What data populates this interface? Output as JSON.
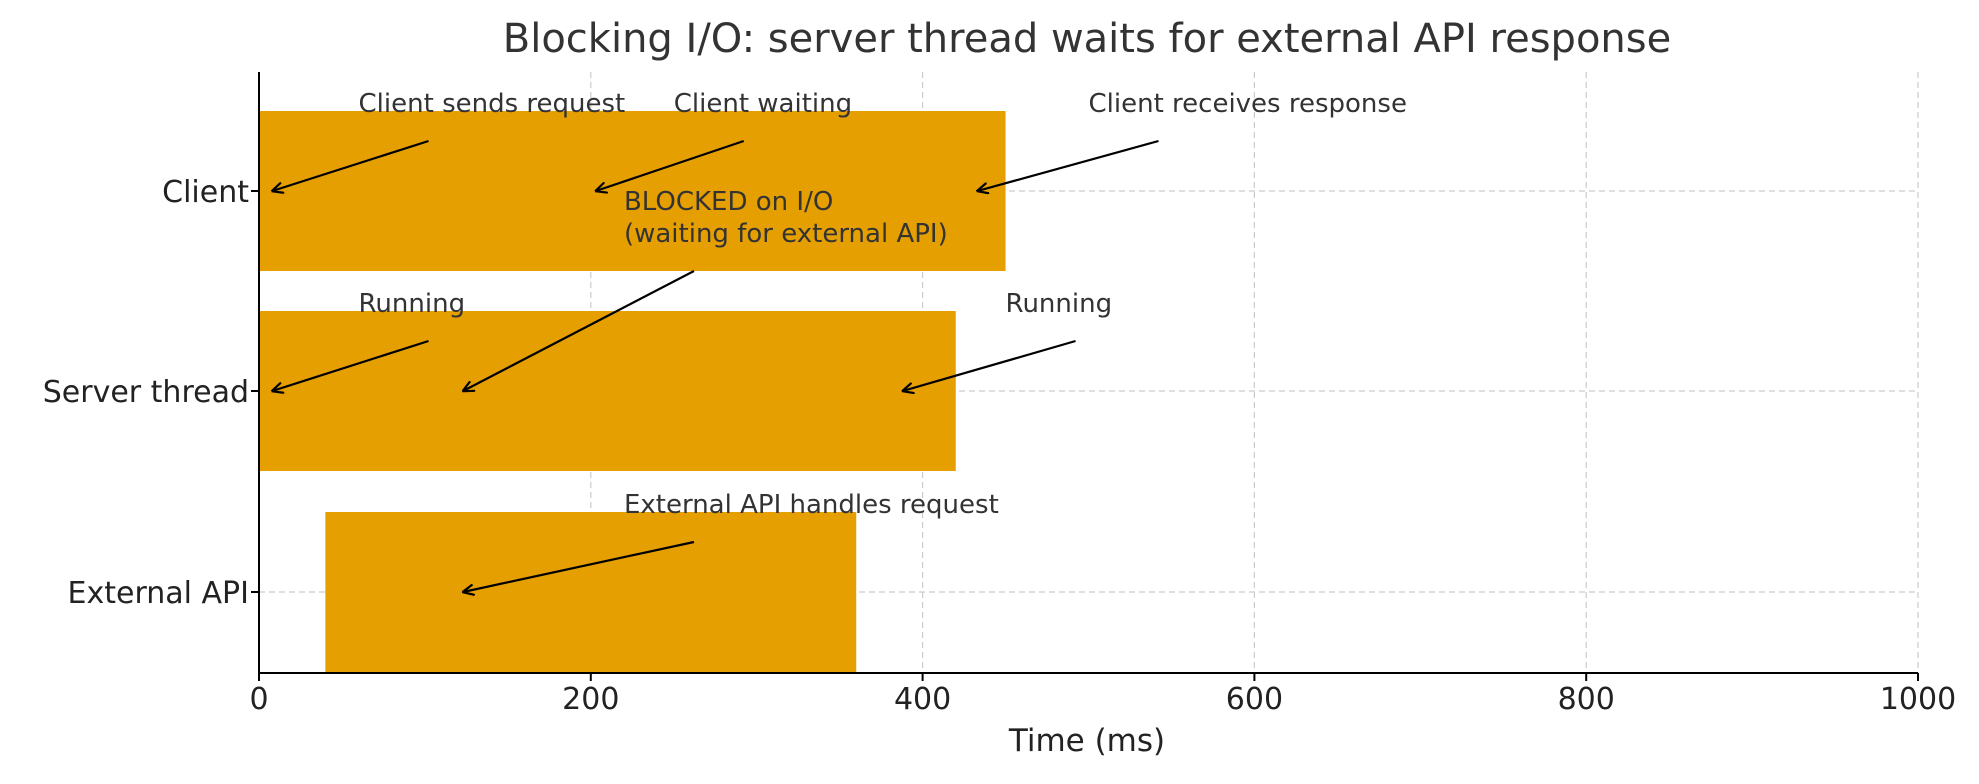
{
  "chart_data": {
    "type": "bar",
    "orientation": "horizontal",
    "title": "Blocking I/O: server thread waits for external API response",
    "xlabel": "Time (ms)",
    "ylabel": "",
    "xlim": [
      0,
      1000
    ],
    "xticks": [
      0,
      200,
      400,
      600,
      800,
      1000
    ],
    "categories": [
      "Client",
      "Server thread",
      "External API"
    ],
    "bars": [
      {
        "category": "Client",
        "start": 0,
        "end": 450
      },
      {
        "category": "Server thread",
        "start": 0,
        "end": 420
      },
      {
        "category": "External API",
        "start": 40,
        "end": 360
      }
    ],
    "grid": true,
    "bar_color": "#E69F00",
    "annotations": [
      {
        "lines": [
          "Client sends request"
        ],
        "category": "Client",
        "text_x": 60,
        "text_y": 0.35,
        "target_x": 8
      },
      {
        "lines": [
          "Client waiting"
        ],
        "category": "Client",
        "text_x": 250,
        "text_y": 0.35,
        "target_x": 203
      },
      {
        "lines": [
          "Client receives response"
        ],
        "category": "Client",
        "text_x": 500,
        "text_y": 0.35,
        "target_x": 433
      },
      {
        "lines": [
          "BLOCKED on I/O",
          "(waiting for external API)"
        ],
        "category": "Server thread",
        "text_x": 220,
        "text_y": 0.7,
        "target_x": 123
      },
      {
        "lines": [
          "Running"
        ],
        "category": "Server thread",
        "text_x": 60,
        "text_y": 0.35,
        "target_x": 8
      },
      {
        "lines": [
          "Running"
        ],
        "category": "Server thread",
        "text_x": 450,
        "text_y": 0.35,
        "target_x": 388
      },
      {
        "lines": [
          "External API handles request"
        ],
        "category": "External API",
        "text_x": 220,
        "text_y": 0.35,
        "target_x": 123
      }
    ]
  }
}
